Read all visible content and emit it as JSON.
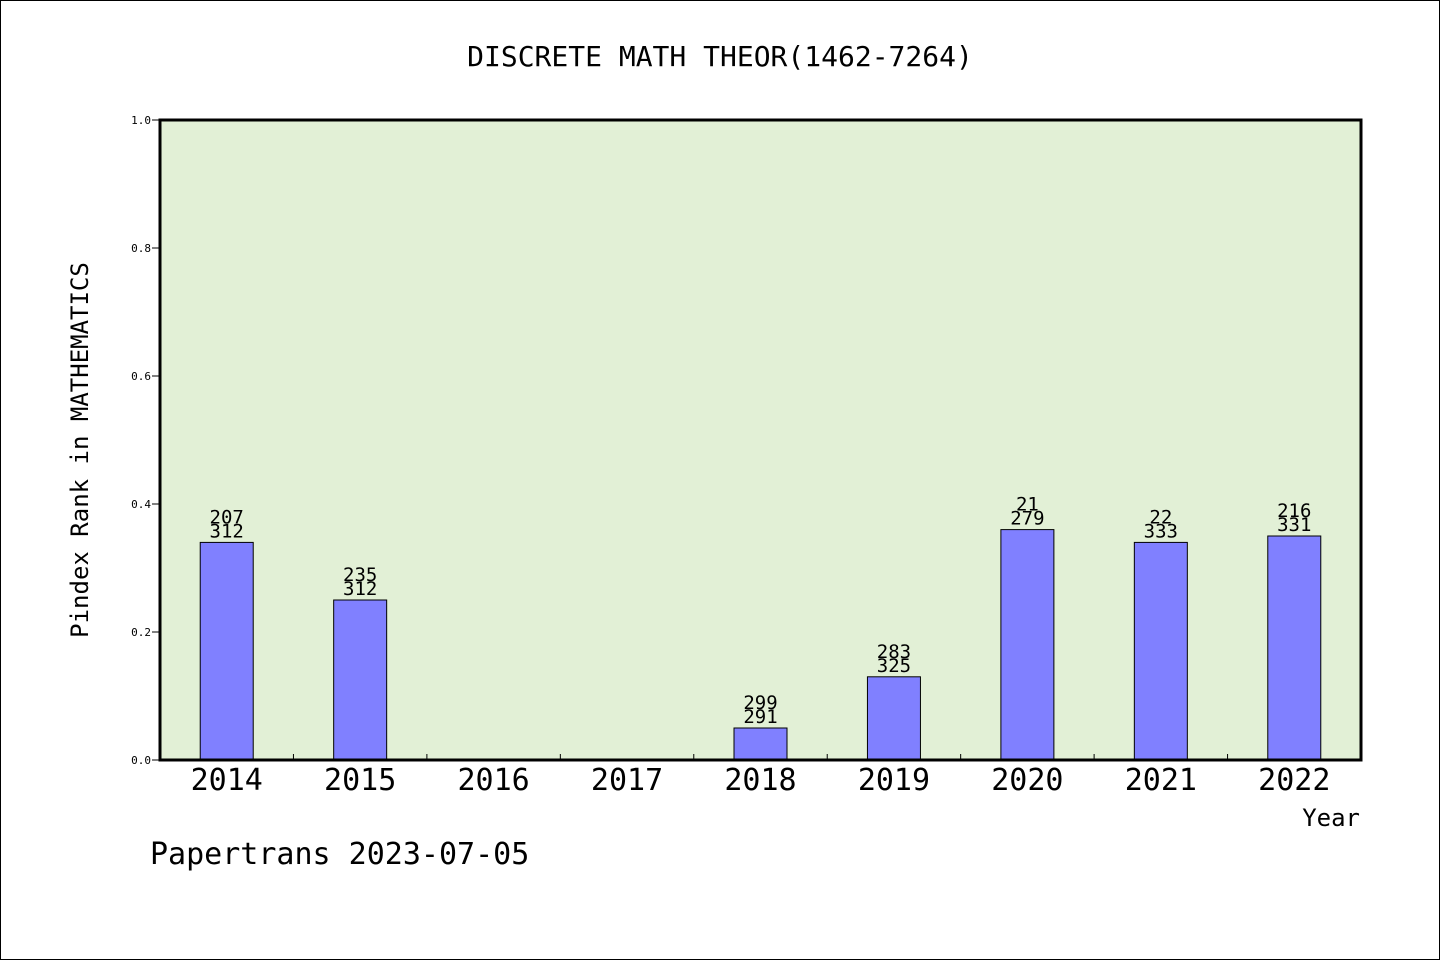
{
  "chart_data": {
    "type": "bar",
    "title": "DISCRETE MATH THEOR(1462-7264)",
    "xlabel": "Year",
    "ylabel": "Pindex Rank in MATHEMATICS",
    "ylim": [
      0,
      1.0
    ],
    "yticks": [
      "0.0",
      "0.2",
      "0.4",
      "0.6",
      "0.8",
      "1.0"
    ],
    "categories": [
      "2014",
      "2015",
      "2016",
      "2017",
      "2018",
      "2019",
      "2020",
      "2021",
      "2022"
    ],
    "values": [
      0.34,
      0.25,
      null,
      null,
      0.05,
      0.13,
      0.36,
      0.34,
      0.35
    ],
    "labels_top": [
      "207",
      "235",
      "",
      "",
      "299",
      "283",
      "21",
      "22",
      "216"
    ],
    "labels_bottom": [
      "312",
      "312",
      "",
      "",
      "291",
      "325",
      "279",
      "333",
      "331"
    ],
    "grid": false,
    "colors": {
      "bar": "#8080ff",
      "plot_background": "#e2f0d6",
      "axis": "#000000"
    }
  },
  "footer": {
    "credit": "Papertrans 2023-07-05"
  }
}
